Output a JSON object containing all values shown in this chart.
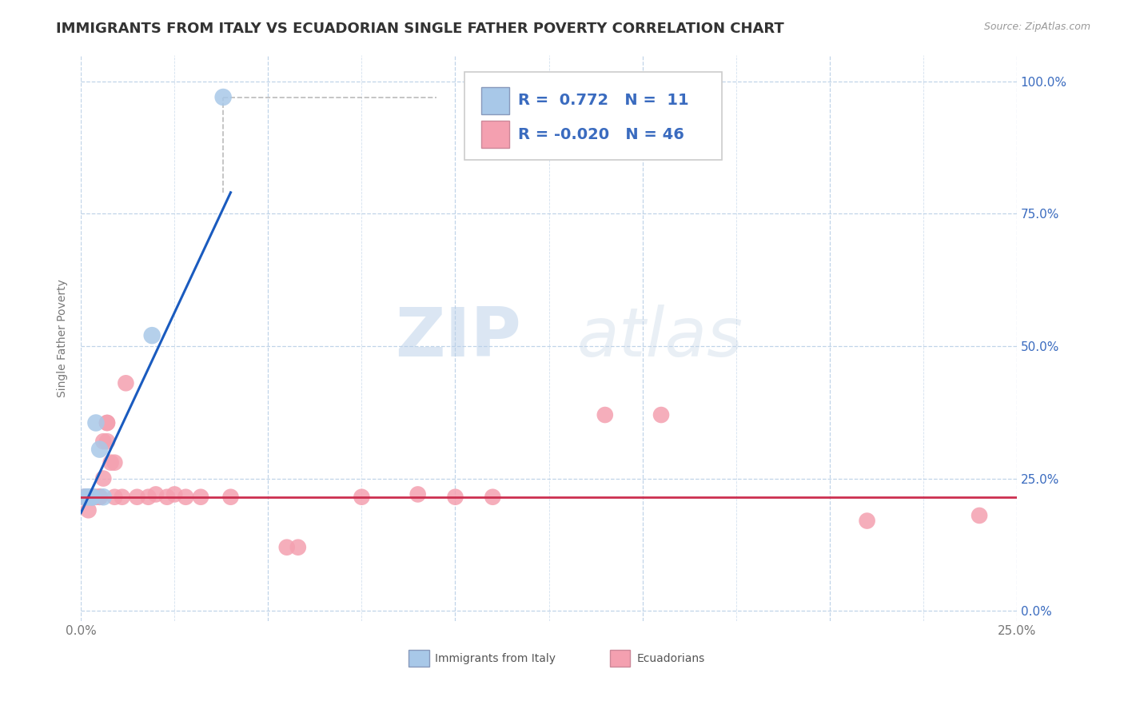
{
  "title": "IMMIGRANTS FROM ITALY VS ECUADORIAN SINGLE FATHER POVERTY CORRELATION CHART",
  "source": "Source: ZipAtlas.com",
  "ylabel_label": "Single Father Poverty",
  "xlim": [
    0.0,
    0.25
  ],
  "ylim": [
    -0.02,
    1.05
  ],
  "xticks": [
    0.0,
    0.05,
    0.1,
    0.15,
    0.2,
    0.25
  ],
  "xticklabels_visible": [
    "0.0%",
    "",
    "",
    "",
    "",
    "25.0%"
  ],
  "yticks": [
    0.0,
    0.25,
    0.5,
    0.75,
    1.0
  ],
  "yticklabels": [
    "0.0%",
    "25.0%",
    "50.0%",
    "75.0%",
    "100.0%"
  ],
  "italy_color": "#a8c8e8",
  "ecuador_color": "#f4a0b0",
  "italy_R": 0.772,
  "italy_N": 11,
  "ecuador_R": -0.02,
  "ecuador_N": 46,
  "legend_text_color": "#3a6bbf",
  "italy_scatter": [
    [
      0.001,
      0.215
    ],
    [
      0.002,
      0.215
    ],
    [
      0.002,
      0.215
    ],
    [
      0.003,
      0.215
    ],
    [
      0.003,
      0.215
    ],
    [
      0.003,
      0.215
    ],
    [
      0.004,
      0.355
    ],
    [
      0.005,
      0.305
    ],
    [
      0.006,
      0.215
    ],
    [
      0.019,
      0.52
    ],
    [
      0.038,
      0.97
    ]
  ],
  "ecuador_scatter": [
    [
      0.001,
      0.215
    ],
    [
      0.001,
      0.215
    ],
    [
      0.002,
      0.215
    ],
    [
      0.002,
      0.215
    ],
    [
      0.002,
      0.215
    ],
    [
      0.002,
      0.19
    ],
    [
      0.002,
      0.215
    ],
    [
      0.003,
      0.215
    ],
    [
      0.003,
      0.215
    ],
    [
      0.003,
      0.215
    ],
    [
      0.003,
      0.215
    ],
    [
      0.003,
      0.215
    ],
    [
      0.004,
      0.215
    ],
    [
      0.004,
      0.215
    ],
    [
      0.005,
      0.215
    ],
    [
      0.005,
      0.215
    ],
    [
      0.005,
      0.215
    ],
    [
      0.005,
      0.215
    ],
    [
      0.006,
      0.25
    ],
    [
      0.006,
      0.32
    ],
    [
      0.007,
      0.32
    ],
    [
      0.007,
      0.355
    ],
    [
      0.007,
      0.355
    ],
    [
      0.008,
      0.28
    ],
    [
      0.009,
      0.28
    ],
    [
      0.009,
      0.215
    ],
    [
      0.011,
      0.215
    ],
    [
      0.012,
      0.43
    ],
    [
      0.015,
      0.215
    ],
    [
      0.018,
      0.215
    ],
    [
      0.02,
      0.22
    ],
    [
      0.023,
      0.215
    ],
    [
      0.025,
      0.22
    ],
    [
      0.028,
      0.215
    ],
    [
      0.032,
      0.215
    ],
    [
      0.04,
      0.215
    ],
    [
      0.055,
      0.12
    ],
    [
      0.058,
      0.12
    ],
    [
      0.075,
      0.215
    ],
    [
      0.09,
      0.22
    ],
    [
      0.1,
      0.215
    ],
    [
      0.11,
      0.215
    ],
    [
      0.14,
      0.37
    ],
    [
      0.155,
      0.37
    ],
    [
      0.21,
      0.17
    ],
    [
      0.24,
      0.18
    ]
  ],
  "watermark_zip": "ZIP",
  "watermark_atlas": "atlas",
  "italy_line_color": "#1a5bbf",
  "ecuador_line_color": "#cc3050",
  "background_color": "#ffffff",
  "grid_color": "#c0d4e8",
  "title_fontsize": 13,
  "axis_label_fontsize": 10,
  "tick_fontsize": 11,
  "legend_fontsize": 14
}
